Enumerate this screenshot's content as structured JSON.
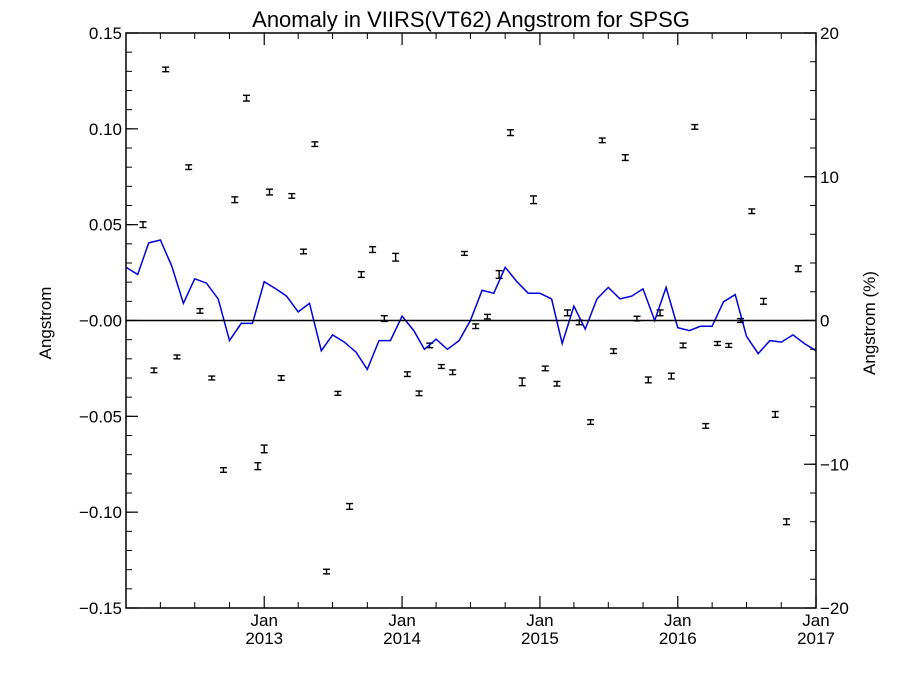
{
  "chart_data": {
    "type": "scatter",
    "title": "Anomaly in VIIRS(VT62) Angstrom for SPSG",
    "ylabel": "Angstrom",
    "y2label": "Angstrom (%)",
    "ylim": [
      -0.15,
      0.15
    ],
    "y2lim": [
      -20,
      20
    ],
    "xlim": [
      "2012-01-01",
      "2017-01-01"
    ],
    "yticks": [
      "0.15",
      "0.10",
      "0.05",
      "-0.00",
      "-0.05",
      "-0.10",
      "-0.15"
    ],
    "y2ticks": [
      "20",
      "10",
      "0",
      "−10",
      "−20"
    ],
    "xticks": [
      {
        "month": "Jan",
        "year": "2013",
        "date": "2013-01-01"
      },
      {
        "month": "Jan",
        "year": "2014",
        "date": "2014-01-01"
      },
      {
        "month": "Jan",
        "year": "2015",
        "date": "2015-01-01"
      },
      {
        "month": "Jan",
        "year": "2016",
        "date": "2016-01-01"
      },
      {
        "month": "Jan",
        "year": "2017",
        "date": "2017-01-01"
      }
    ],
    "zero_line": true,
    "grid": false,
    "legend": "none",
    "series": [
      {
        "kind": "scatter-errorbar",
        "axis": "left",
        "color": "#000000",
        "points": [
          [
            "2012-02-15",
            0.05,
            0.0015
          ],
          [
            "2012-03-15",
            -0.026,
            0.0012
          ],
          [
            "2012-04-15",
            0.131,
            0.0012
          ],
          [
            "2012-05-15",
            -0.019,
            0.001
          ],
          [
            "2012-06-15",
            0.08,
            0.0012
          ],
          [
            "2012-07-15",
            0.005,
            0.0012
          ],
          [
            "2012-08-15",
            -0.03,
            0.001
          ],
          [
            "2012-09-15",
            -0.078,
            0.0012
          ],
          [
            "2012-10-15",
            0.063,
            0.0015
          ],
          [
            "2012-11-15",
            0.116,
            0.0015
          ],
          [
            "2012-12-15",
            -0.076,
            0.0018
          ],
          [
            "2013-01-01",
            -0.067,
            0.002
          ],
          [
            "2013-01-15",
            0.067,
            0.0015
          ],
          [
            "2013-02-15",
            -0.03,
            0.0012
          ],
          [
            "2013-03-15",
            0.065,
            0.0012
          ],
          [
            "2013-04-15",
            0.036,
            0.0012
          ],
          [
            "2013-05-15",
            0.092,
            0.0012
          ],
          [
            "2013-06-15",
            -0.131,
            0.0012
          ],
          [
            "2013-07-15",
            -0.038,
            0.001
          ],
          [
            "2013-08-15",
            -0.097,
            0.0015
          ],
          [
            "2013-09-15",
            0.024,
            0.0015
          ],
          [
            "2013-10-15",
            0.037,
            0.0015
          ],
          [
            "2013-11-15",
            0.001,
            0.0015
          ],
          [
            "2013-12-15",
            0.033,
            0.002
          ],
          [
            "2014-01-15",
            -0.028,
            0.0012
          ],
          [
            "2014-02-15",
            -0.038,
            0.0012
          ],
          [
            "2014-03-15",
            -0.013,
            0.0012
          ],
          [
            "2014-04-15",
            -0.024,
            0.001
          ],
          [
            "2014-05-15",
            -0.027,
            0.0012
          ],
          [
            "2014-06-15",
            0.035,
            0.001
          ],
          [
            "2014-07-15",
            -0.003,
            0.0012
          ],
          [
            "2014-08-15",
            0.002,
            0.0012
          ],
          [
            "2014-09-15",
            0.024,
            0.002
          ],
          [
            "2014-10-15",
            0.098,
            0.0015
          ],
          [
            "2014-11-15",
            -0.032,
            0.002
          ],
          [
            "2014-12-15",
            0.063,
            0.002
          ],
          [
            "2015-01-15",
            -0.025,
            0.0012
          ],
          [
            "2015-02-15",
            -0.033,
            0.0012
          ],
          [
            "2015-03-15",
            0.004,
            0.0015
          ],
          [
            "2015-04-15",
            -0.001,
            0.0012
          ],
          [
            "2015-05-15",
            -0.053,
            0.0012
          ],
          [
            "2015-06-15",
            0.094,
            0.0012
          ],
          [
            "2015-07-15",
            -0.016,
            0.0012
          ],
          [
            "2015-08-15",
            0.085,
            0.0015
          ],
          [
            "2015-09-15",
            0.001,
            0.0012
          ],
          [
            "2015-10-15",
            -0.031,
            0.0015
          ],
          [
            "2015-11-15",
            0.004,
            0.0015
          ],
          [
            "2015-12-15",
            -0.029,
            0.0015
          ],
          [
            "2016-01-15",
            -0.013,
            0.0012
          ],
          [
            "2016-02-15",
            0.101,
            0.0012
          ],
          [
            "2016-03-15",
            -0.055,
            0.0012
          ],
          [
            "2016-04-15",
            -0.012,
            0.001
          ],
          [
            "2016-05-15",
            -0.013,
            0.001
          ],
          [
            "2016-06-15",
            0.0,
            0.001
          ],
          [
            "2016-07-15",
            0.057,
            0.0012
          ],
          [
            "2016-08-15",
            0.01,
            0.0015
          ],
          [
            "2016-09-15",
            -0.049,
            0.0015
          ],
          [
            "2016-10-15",
            -0.105,
            0.0015
          ],
          [
            "2016-11-15",
            0.027,
            0.0015
          ]
        ]
      },
      {
        "kind": "line",
        "axis": "right",
        "color": "#0000dd",
        "points": [
          [
            "2012-01-01",
            3.7
          ],
          [
            "2012-02-01",
            3.2
          ],
          [
            "2012-03-01",
            5.4
          ],
          [
            "2012-04-01",
            5.6
          ],
          [
            "2012-05-01",
            3.8
          ],
          [
            "2012-06-01",
            1.2
          ],
          [
            "2012-07-01",
            2.9
          ],
          [
            "2012-08-01",
            2.6
          ],
          [
            "2012-09-01",
            1.5
          ],
          [
            "2012-10-01",
            -1.4
          ],
          [
            "2012-11-01",
            -0.2
          ],
          [
            "2012-12-01",
            -0.2
          ],
          [
            "2013-01-01",
            2.7
          ],
          [
            "2013-02-01",
            2.2
          ],
          [
            "2013-03-01",
            1.7
          ],
          [
            "2013-04-01",
            0.6
          ],
          [
            "2013-05-01",
            1.2
          ],
          [
            "2013-06-01",
            -2.1
          ],
          [
            "2013-07-01",
            -1.0
          ],
          [
            "2013-08-01",
            -1.5
          ],
          [
            "2013-09-01",
            -2.2
          ],
          [
            "2013-10-01",
            -3.4
          ],
          [
            "2013-11-01",
            -1.4
          ],
          [
            "2013-12-01",
            -1.4
          ],
          [
            "2014-01-01",
            0.3
          ],
          [
            "2014-02-01",
            -0.7
          ],
          [
            "2014-03-01",
            -2.0
          ],
          [
            "2014-04-01",
            -1.3
          ],
          [
            "2014-05-01",
            -2.0
          ],
          [
            "2014-06-01",
            -1.4
          ],
          [
            "2014-07-01",
            0.0
          ],
          [
            "2014-08-01",
            2.1
          ],
          [
            "2014-09-01",
            1.9
          ],
          [
            "2014-10-01",
            3.7
          ],
          [
            "2014-11-01",
            2.7
          ],
          [
            "2014-12-01",
            1.9
          ],
          [
            "2015-01-01",
            1.9
          ],
          [
            "2015-02-01",
            1.5
          ],
          [
            "2015-03-01",
            -1.6
          ],
          [
            "2015-04-01",
            1.0
          ],
          [
            "2015-05-01",
            -0.6
          ],
          [
            "2015-06-01",
            1.5
          ],
          [
            "2015-07-01",
            2.3
          ],
          [
            "2015-08-01",
            1.5
          ],
          [
            "2015-09-01",
            1.7
          ],
          [
            "2015-10-01",
            2.2
          ],
          [
            "2015-11-01",
            0.0
          ],
          [
            "2015-12-01",
            2.3
          ],
          [
            "2016-01-01",
            -0.5
          ],
          [
            "2016-02-01",
            -0.7
          ],
          [
            "2016-03-01",
            -0.4
          ],
          [
            "2016-04-01",
            -0.4
          ],
          [
            "2016-05-01",
            1.3
          ],
          [
            "2016-06-01",
            1.8
          ],
          [
            "2016-07-01",
            -1.1
          ],
          [
            "2016-08-01",
            -2.3
          ],
          [
            "2016-09-01",
            -1.4
          ],
          [
            "2016-10-01",
            -1.5
          ],
          [
            "2016-11-01",
            -1.0
          ],
          [
            "2016-12-01",
            -1.6
          ],
          [
            "2017-01-01",
            -2.1
          ]
        ]
      }
    ]
  }
}
